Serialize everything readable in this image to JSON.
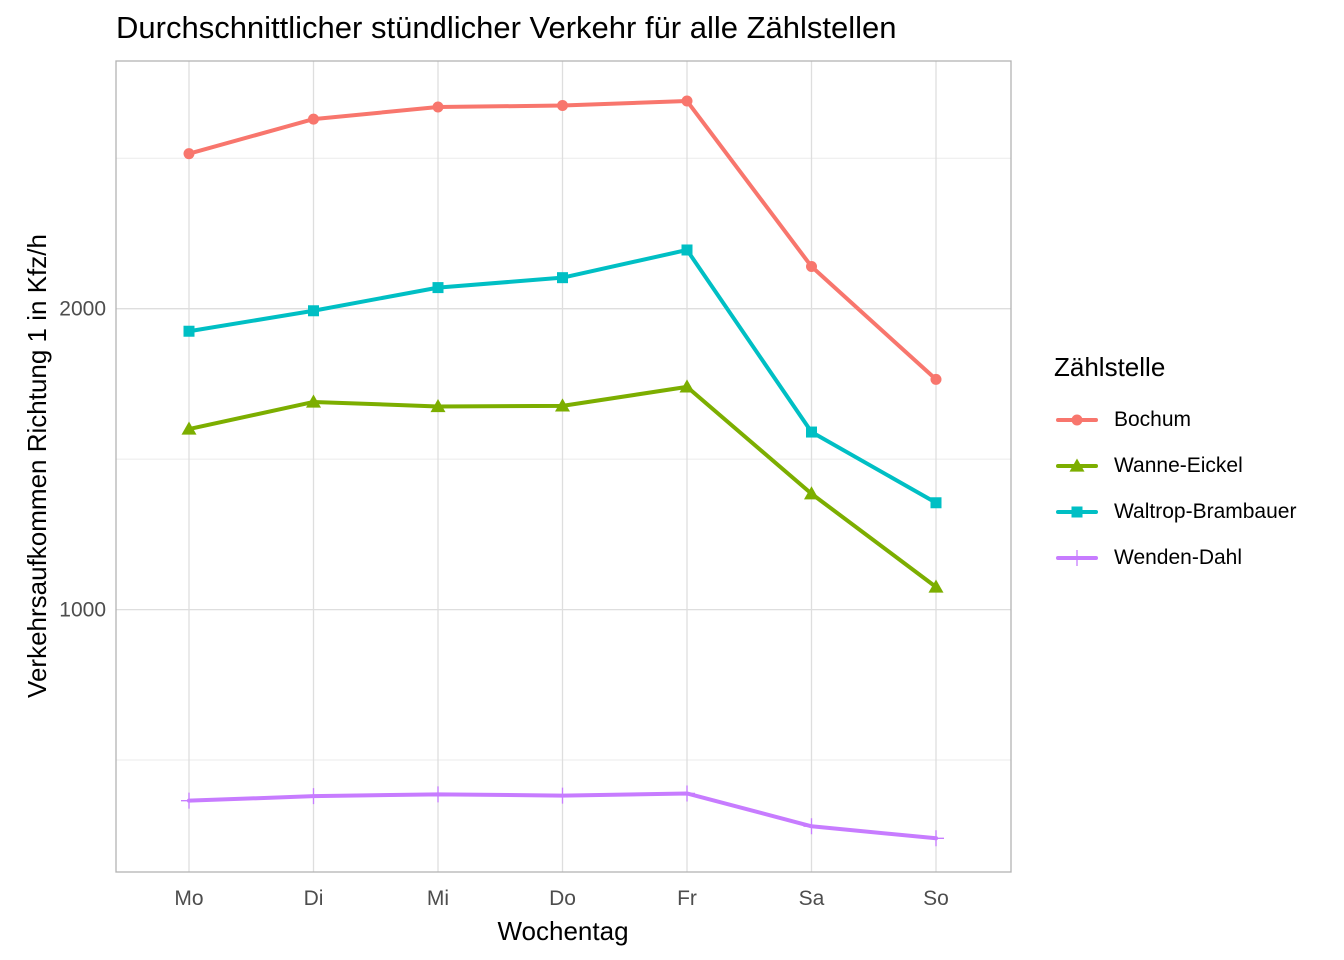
{
  "chart_data": {
    "type": "line",
    "title": "Durchschnittlicher stündlicher Verkehr für alle Zählstellen",
    "xlabel": "Wochentag",
    "ylabel": "Verkehrsaufkommen Richtung 1 in Kfz/h",
    "categories": [
      "Mo",
      "Di",
      "Mi",
      "Do",
      "Fr",
      "Sa",
      "So"
    ],
    "ylim": [
      128,
      2823
    ],
    "y_gridlines_major": [
      1000,
      2000
    ],
    "y_gridlines_minor": [
      500,
      1500,
      2500
    ],
    "y_tick_labels": [
      "1000",
      "2000"
    ],
    "grid": true,
    "legend": {
      "title": "Zählstelle",
      "placement": "right"
    },
    "series": [
      {
        "name": "Bochum",
        "color": "#F8766D",
        "marker": "circle",
        "values": [
          2515,
          2630,
          2670,
          2675,
          2690,
          2140,
          1765
        ]
      },
      {
        "name": "Wanne-Eickel",
        "color": "#7CAE00",
        "marker": "triangle",
        "values": [
          1600,
          1690,
          1675,
          1677,
          1740,
          1385,
          1075
        ]
      },
      {
        "name": "Waltrop-Brambauer",
        "color": "#00BFC4",
        "marker": "square",
        "values": [
          1925,
          1993,
          2070,
          2103,
          2195,
          1590,
          1355
        ]
      },
      {
        "name": "Wenden-Dahl",
        "color": "#C77CFF",
        "marker": "plus",
        "values": [
          365,
          380,
          386,
          382,
          389,
          280,
          240
        ]
      }
    ]
  }
}
